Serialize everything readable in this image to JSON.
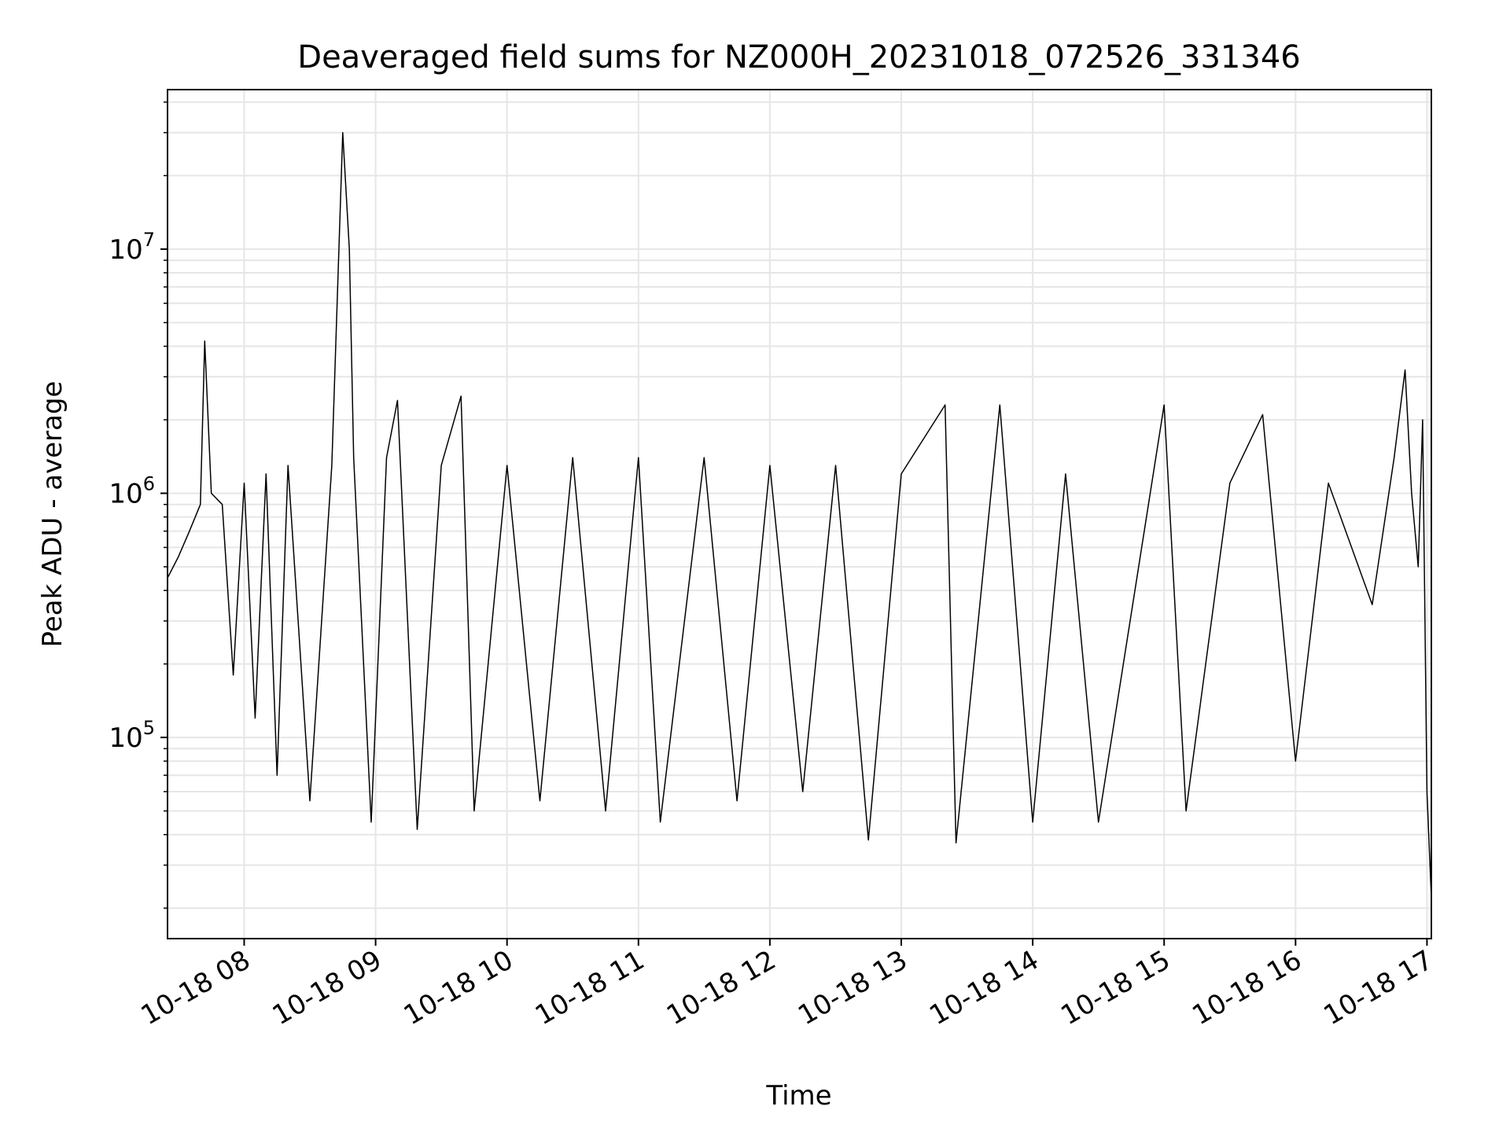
{
  "chart_data": {
    "type": "line",
    "title": "Deaveraged field sums for NZ000H_20231018_072526_331346",
    "xlabel": "Time",
    "ylabel": "Peak ADU - average",
    "y_scale": "log",
    "ylim": [
      15000,
      45000000
    ],
    "xlim": [
      "2023-10-18 07:25",
      "2023-10-18 17:02"
    ],
    "grid": true,
    "line_color": "#000000",
    "grid_color": "#e6e6e6",
    "x_ticks": [
      {
        "value": "2023-10-18 08:00",
        "label": "10-18 08"
      },
      {
        "value": "2023-10-18 09:00",
        "label": "10-18 09"
      },
      {
        "value": "2023-10-18 10:00",
        "label": "10-18 10"
      },
      {
        "value": "2023-10-18 11:00",
        "label": "10-18 11"
      },
      {
        "value": "2023-10-18 12:00",
        "label": "10-18 12"
      },
      {
        "value": "2023-10-18 13:00",
        "label": "10-18 13"
      },
      {
        "value": "2023-10-18 14:00",
        "label": "10-18 14"
      },
      {
        "value": "2023-10-18 15:00",
        "label": "10-18 15"
      },
      {
        "value": "2023-10-18 16:00",
        "label": "10-18 16"
      },
      {
        "value": "2023-10-18 17:00",
        "label": "10-18 17"
      }
    ],
    "y_ticks": [
      {
        "value": 100000,
        "base": "10",
        "exp": "5"
      },
      {
        "value": 1000000,
        "base": "10",
        "exp": "6"
      },
      {
        "value": 10000000,
        "base": "10",
        "exp": "7"
      }
    ],
    "series": [
      {
        "points": [
          [
            "2023-10-18 07:25",
            450000
          ],
          [
            "2023-10-18 07:30",
            550000
          ],
          [
            "2023-10-18 07:35",
            700000
          ],
          [
            "2023-10-18 07:40",
            900000
          ],
          [
            "2023-10-18 07:42",
            4200000
          ],
          [
            "2023-10-18 07:45",
            1000000
          ],
          [
            "2023-10-18 07:50",
            900000
          ],
          [
            "2023-10-18 07:55",
            180000
          ],
          [
            "2023-10-18 08:00",
            1100000
          ],
          [
            "2023-10-18 08:05",
            120000
          ],
          [
            "2023-10-18 08:10",
            1200000
          ],
          [
            "2023-10-18 08:15",
            70000
          ],
          [
            "2023-10-18 08:20",
            1300000
          ],
          [
            "2023-10-18 08:30",
            55000
          ],
          [
            "2023-10-18 08:40",
            1300000
          ],
          [
            "2023-10-18 08:45",
            30000000
          ],
          [
            "2023-10-18 08:48",
            10000000
          ],
          [
            "2023-10-18 08:50",
            1400000
          ],
          [
            "2023-10-18 08:58",
            45000
          ],
          [
            "2023-10-18 09:05",
            1400000
          ],
          [
            "2023-10-18 09:10",
            2400000
          ],
          [
            "2023-10-18 09:19",
            42000
          ],
          [
            "2023-10-18 09:30",
            1300000
          ],
          [
            "2023-10-18 09:39",
            2500000
          ],
          [
            "2023-10-18 09:45",
            50000
          ],
          [
            "2023-10-18 10:00",
            1300000
          ],
          [
            "2023-10-18 10:15",
            55000
          ],
          [
            "2023-10-18 10:30",
            1400000
          ],
          [
            "2023-10-18 10:45",
            50000
          ],
          [
            "2023-10-18 11:00",
            1400000
          ],
          [
            "2023-10-18 11:10",
            45000
          ],
          [
            "2023-10-18 11:30",
            1400000
          ],
          [
            "2023-10-18 11:45",
            55000
          ],
          [
            "2023-10-18 12:00",
            1300000
          ],
          [
            "2023-10-18 12:15",
            60000
          ],
          [
            "2023-10-18 12:30",
            1300000
          ],
          [
            "2023-10-18 12:45",
            38000
          ],
          [
            "2023-10-18 13:00",
            1200000
          ],
          [
            "2023-10-18 13:20",
            2300000
          ],
          [
            "2023-10-18 13:25",
            37000
          ],
          [
            "2023-10-18 13:45",
            2300000
          ],
          [
            "2023-10-18 14:00",
            45000
          ],
          [
            "2023-10-18 14:15",
            1200000
          ],
          [
            "2023-10-18 14:30",
            45000
          ],
          [
            "2023-10-18 15:00",
            2300000
          ],
          [
            "2023-10-18 15:10",
            50000
          ],
          [
            "2023-10-18 15:30",
            1100000
          ],
          [
            "2023-10-18 15:45",
            2100000
          ],
          [
            "2023-10-18 16:00",
            80000
          ],
          [
            "2023-10-18 16:15",
            1100000
          ],
          [
            "2023-10-18 16:35",
            350000
          ],
          [
            "2023-10-18 16:45",
            1400000
          ],
          [
            "2023-10-18 16:50",
            3200000
          ],
          [
            "2023-10-18 16:53",
            1000000
          ],
          [
            "2023-10-18 16:56",
            500000
          ],
          [
            "2023-10-18 16:58",
            2000000
          ],
          [
            "2023-10-18 17:00",
            60000
          ],
          [
            "2023-10-18 17:02",
            22000
          ]
        ]
      }
    ]
  }
}
